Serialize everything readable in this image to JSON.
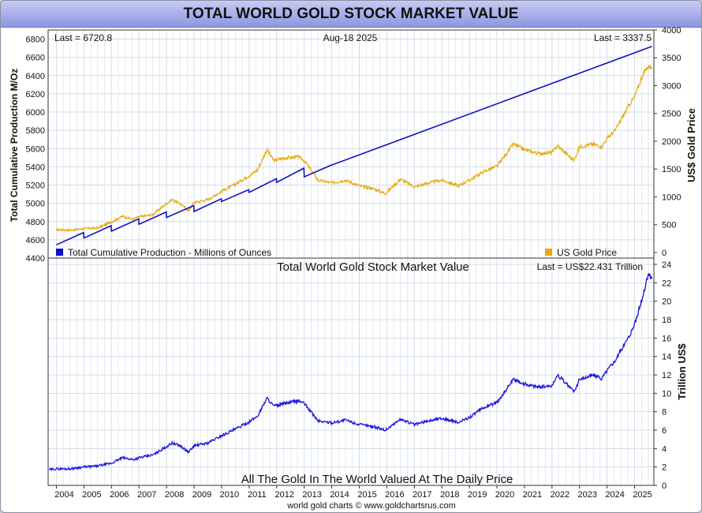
{
  "title": "TOTAL WORLD GOLD STOCK MARKET VALUE",
  "footer": "world gold charts © www.goldchartsrus.com",
  "colors": {
    "production": "#1010c8",
    "gold_price": "#e8a90a",
    "market_value": "#1a14e0",
    "grid": "#d2dce8",
    "title_bg": "#a9b0ec"
  },
  "chart_data": [
    {
      "type": "line",
      "panel": "top",
      "date_label": "Aug-18  2025",
      "last_left": "Last = 6720.8",
      "last_right": "Last = 3337.5",
      "ylabel_left": "Total Cumulative Production M/Oz",
      "ylabel_right": "US$ Gold Price",
      "ylim_left": [
        4400,
        6900
      ],
      "ylim_right": [
        -100,
        4000
      ],
      "yticks_left": [
        4400,
        4600,
        4800,
        5000,
        5200,
        5400,
        5600,
        5800,
        6000,
        6200,
        6400,
        6600,
        6800
      ],
      "yticks_right": [
        0,
        500,
        1000,
        1500,
        2000,
        2500,
        3000,
        3500,
        4000
      ],
      "series": [
        {
          "name": "Total Cumulative Production - Millions of Ounces",
          "axis": "left",
          "x": [
            2004.0,
            2004.99,
            2005.0,
            2005.99,
            2006.0,
            2006.99,
            2007.0,
            2007.99,
            2008.0,
            2008.99,
            2009.0,
            2009.99,
            2010.0,
            2010.99,
            2011.0,
            2011.99,
            2012.0,
            2012.99,
            2013.0,
            2013.99,
            2014.0,
            2025.63
          ],
          "y": [
            4545,
            4680,
            4620,
            4755,
            4695,
            4830,
            4770,
            4905,
            4845,
            4975,
            4910,
            5050,
            5020,
            5150,
            5120,
            5270,
            5230,
            5385,
            5290,
            5420,
            5420,
            6720.8
          ]
        },
        {
          "name": "US Gold Price",
          "axis": "right",
          "x": [
            2004.0,
            2004.5,
            2005.0,
            2005.5,
            2006.0,
            2006.4,
            2006.8,
            2007.0,
            2007.5,
            2008.0,
            2008.2,
            2008.5,
            2008.8,
            2009.0,
            2009.5,
            2010.0,
            2010.5,
            2011.0,
            2011.3,
            2011.65,
            2011.9,
            2012.3,
            2012.8,
            2013.0,
            2013.3,
            2013.5,
            2014.0,
            2014.5,
            2015.0,
            2015.5,
            2015.95,
            2016.5,
            2017.0,
            2017.5,
            2018.0,
            2018.6,
            2019.0,
            2019.5,
            2020.0,
            2020.6,
            2021.0,
            2021.5,
            2022.0,
            2022.2,
            2022.8,
            2023.0,
            2023.5,
            2023.8,
            2024.0,
            2024.3,
            2024.8,
            2025.0,
            2025.3,
            2025.5,
            2025.63
          ],
          "y": [
            410,
            400,
            430,
            440,
            550,
            650,
            600,
            640,
            680,
            880,
            950,
            880,
            750,
            900,
            950,
            1100,
            1230,
            1380,
            1480,
            1850,
            1650,
            1700,
            1720,
            1650,
            1450,
            1300,
            1250,
            1300,
            1200,
            1150,
            1060,
            1320,
            1180,
            1250,
            1300,
            1200,
            1300,
            1450,
            1550,
            1950,
            1850,
            1780,
            1800,
            1920,
            1650,
            1900,
            1950,
            1900,
            2050,
            2200,
            2650,
            2800,
            3200,
            3350,
            3337.5
          ]
        }
      ]
    },
    {
      "type": "line",
      "panel": "bottom",
      "title": "Total World Gold Stock Market Value",
      "subtitle": "All The Gold In The World Valued At The Daily Price",
      "last_label": "Last = US$22.431 Trillion",
      "ylabel": "Trillion US$",
      "ylim": [
        0,
        24
      ],
      "yticks": [
        0,
        2,
        4,
        6,
        8,
        10,
        12,
        14,
        16,
        18,
        20,
        22,
        24
      ],
      "xlim": [
        2003.7,
        2025.7
      ],
      "xticks": [
        2004,
        2005,
        2006,
        2007,
        2008,
        2009,
        2010,
        2011,
        2012,
        2013,
        2014,
        2015,
        2016,
        2017,
        2018,
        2019,
        2020,
        2021,
        2022,
        2023,
        2024,
        2025
      ],
      "series": [
        {
          "name": "",
          "x": [
            2003.75,
            2004.0,
            2004.5,
            2005.0,
            2005.5,
            2006.0,
            2006.4,
            2006.8,
            2007.0,
            2007.5,
            2008.0,
            2008.2,
            2008.5,
            2008.8,
            2009.0,
            2009.5,
            2010.0,
            2010.5,
            2011.0,
            2011.3,
            2011.65,
            2011.9,
            2012.3,
            2012.8,
            2013.0,
            2013.3,
            2013.5,
            2014.0,
            2014.5,
            2015.0,
            2015.5,
            2015.95,
            2016.5,
            2017.0,
            2017.5,
            2018.0,
            2018.6,
            2019.0,
            2019.5,
            2020.0,
            2020.6,
            2021.0,
            2021.5,
            2022.0,
            2022.2,
            2022.8,
            2023.0,
            2023.5,
            2023.8,
            2024.0,
            2024.3,
            2024.8,
            2025.0,
            2025.3,
            2025.5,
            2025.63
          ],
          "y": [
            1.7,
            1.8,
            1.8,
            2.0,
            2.1,
            2.4,
            3.0,
            2.8,
            3.0,
            3.3,
            4.2,
            4.6,
            4.3,
            3.6,
            4.3,
            4.6,
            5.4,
            6.1,
            6.9,
            7.5,
            9.5,
            8.6,
            8.9,
            9.2,
            8.9,
            7.8,
            7.0,
            6.8,
            7.1,
            6.6,
            6.4,
            6.0,
            7.2,
            6.6,
            7.0,
            7.3,
            6.8,
            7.4,
            8.4,
            9.0,
            11.5,
            11.0,
            10.7,
            10.8,
            12.0,
            10.2,
            11.5,
            12.0,
            11.6,
            12.5,
            13.6,
            16.2,
            17.5,
            20.5,
            23.0,
            22.431
          ]
        }
      ]
    }
  ]
}
